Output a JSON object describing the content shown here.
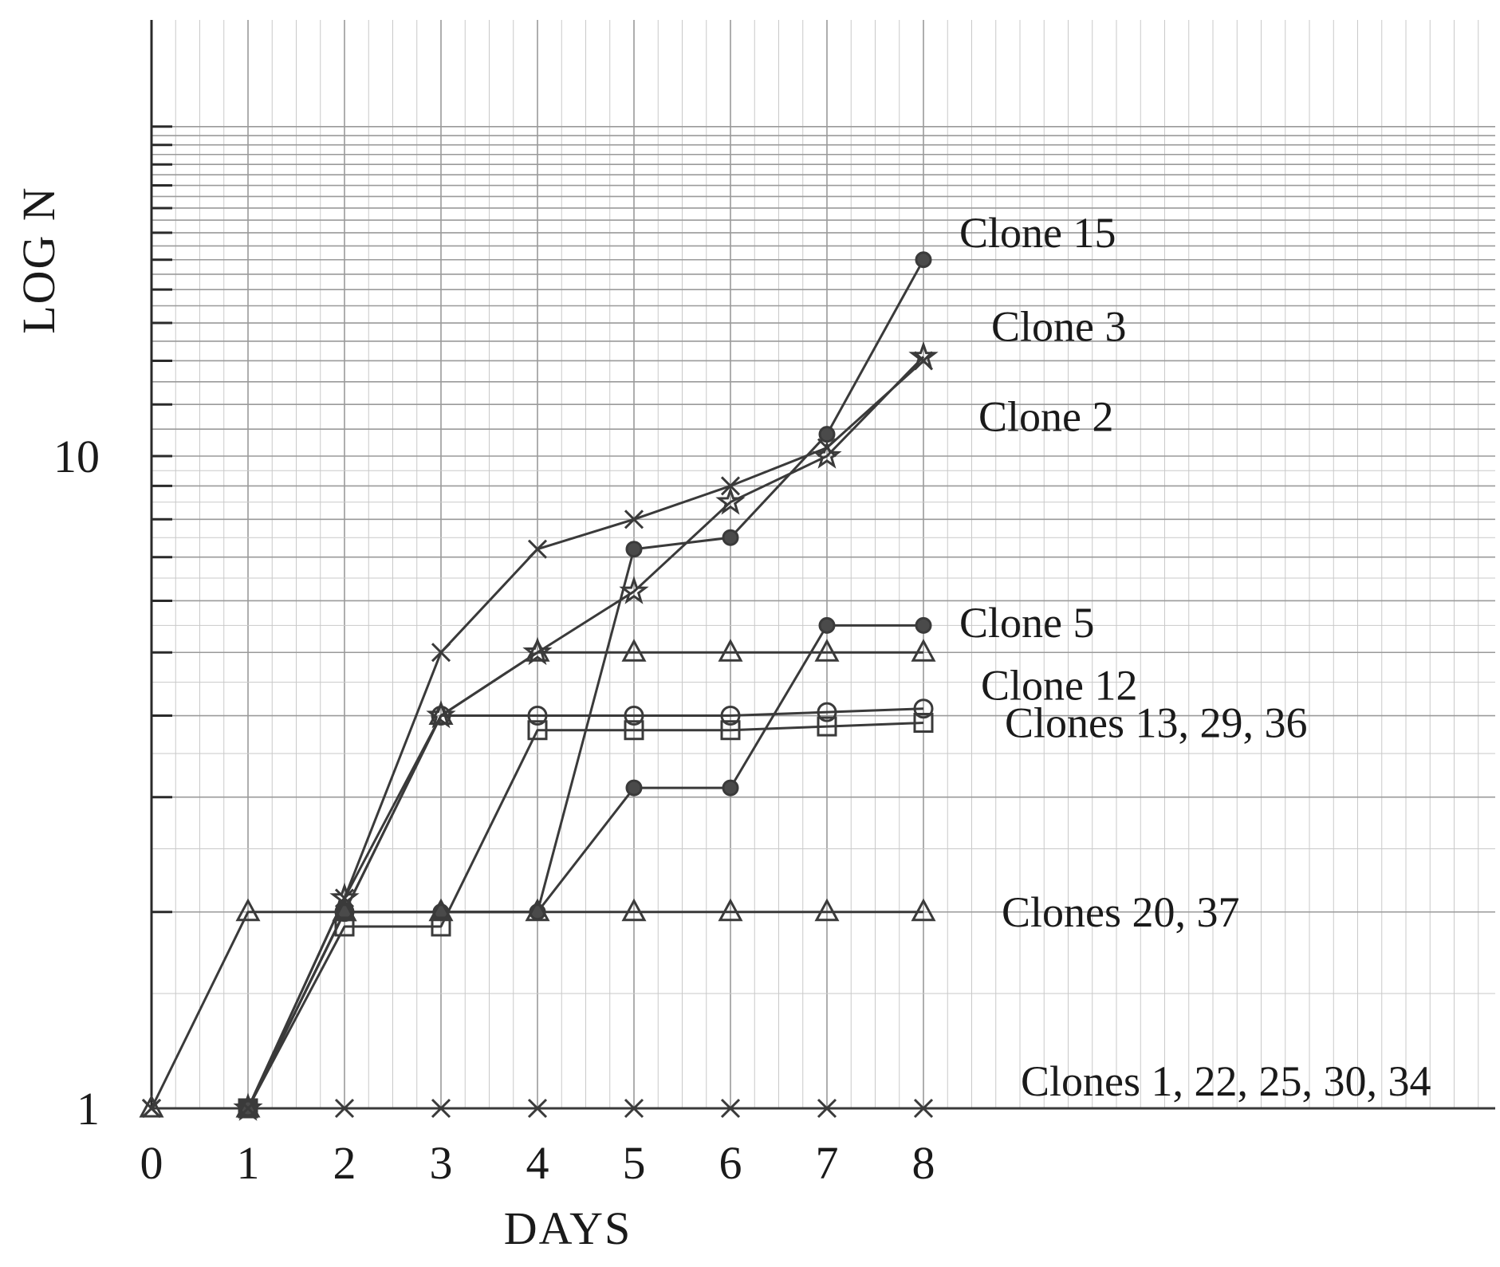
{
  "chart_data": {
    "type": "line",
    "title": "",
    "xlabel": "DAYS",
    "ylabel": "LOG N",
    "y_scale": "log",
    "xlim": [
      0,
      8
    ],
    "ylim": [
      1,
      32
    ],
    "x_ticks": [
      "0",
      "1",
      "2",
      "3",
      "4",
      "5",
      "6",
      "7",
      "8"
    ],
    "y_ticks": [
      {
        "value": 1,
        "label": "1"
      },
      {
        "value": 10,
        "label": "10"
      }
    ],
    "grid": true,
    "series": [
      {
        "name": "Clone 15",
        "marker": "dot",
        "x": [
          1,
          2,
          3,
          4,
          5,
          6,
          7,
          8
        ],
        "y": [
          1,
          2,
          2,
          2,
          7.2,
          7.5,
          10.8,
          20
        ]
      },
      {
        "name": "Clone 3",
        "marker": "star",
        "x": [
          1,
          2,
          3,
          4,
          5,
          6,
          7,
          8
        ],
        "y": [
          1,
          2.1,
          4,
          5,
          6.2,
          8.5,
          10,
          14.2
        ]
      },
      {
        "name": "Clone 2",
        "marker": "x",
        "x": [
          0,
          1,
          2,
          3,
          4,
          5,
          6,
          7,
          8
        ],
        "y": [
          1,
          1,
          2.1,
          5,
          7.2,
          8,
          9,
          10.3,
          14
        ]
      },
      {
        "name": "Clone 5",
        "marker": "dot",
        "x": [
          1,
          2,
          3,
          4,
          5,
          6,
          7,
          8
        ],
        "y": [
          1,
          2,
          2,
          2,
          3.1,
          3.1,
          5.5,
          5.5
        ]
      },
      {
        "name": "Clone 12",
        "marker": "triangle",
        "x": [
          1,
          2,
          3,
          4,
          5,
          6,
          7,
          8
        ],
        "y": [
          1,
          2,
          4,
          5,
          5,
          5,
          5,
          5
        ]
      },
      {
        "name": "Clones 13, 29, 36",
        "marker": "circle",
        "x": [
          1,
          2,
          3,
          4,
          5,
          6,
          7,
          8
        ],
        "y": [
          1,
          2,
          4,
          4,
          4,
          4,
          4.05,
          4.1
        ]
      },
      {
        "name": "Clones 13, 29, 36",
        "marker": "square",
        "x": [
          1,
          2,
          3,
          4,
          5,
          6,
          7,
          8
        ],
        "y": [
          1,
          1.9,
          1.9,
          3.8,
          3.8,
          3.8,
          3.85,
          3.9
        ]
      },
      {
        "name": "Clones 20, 37",
        "marker": "triangle",
        "x": [
          0,
          1,
          2,
          3,
          4,
          5,
          6,
          7,
          8
        ],
        "y": [
          1,
          2,
          2,
          2,
          2,
          2,
          2,
          2,
          2
        ]
      },
      {
        "name": "Clones 1, 22, 25, 30, 34",
        "marker": "x",
        "x": [
          0,
          1,
          2,
          3,
          4,
          5,
          6,
          7,
          8
        ],
        "y": [
          1,
          1,
          1,
          1,
          1,
          1,
          1,
          1,
          1
        ]
      }
    ],
    "labels": [
      {
        "text": "Clone 15",
        "y": 22
      },
      {
        "text": "Clone 3",
        "y": 15.8
      },
      {
        "text": "Clone 2",
        "y": 11.5
      },
      {
        "text": "Clone 5",
        "y": 5.55
      },
      {
        "text": "Clone 12",
        "y": 4.45
      },
      {
        "text": "Clones 13, 29, 36",
        "y": 3.9
      },
      {
        "text": "Clones 20, 37",
        "y": 2
      },
      {
        "text": "Clones 1, 22, 25, 30, 34",
        "y": 1.1
      }
    ]
  }
}
